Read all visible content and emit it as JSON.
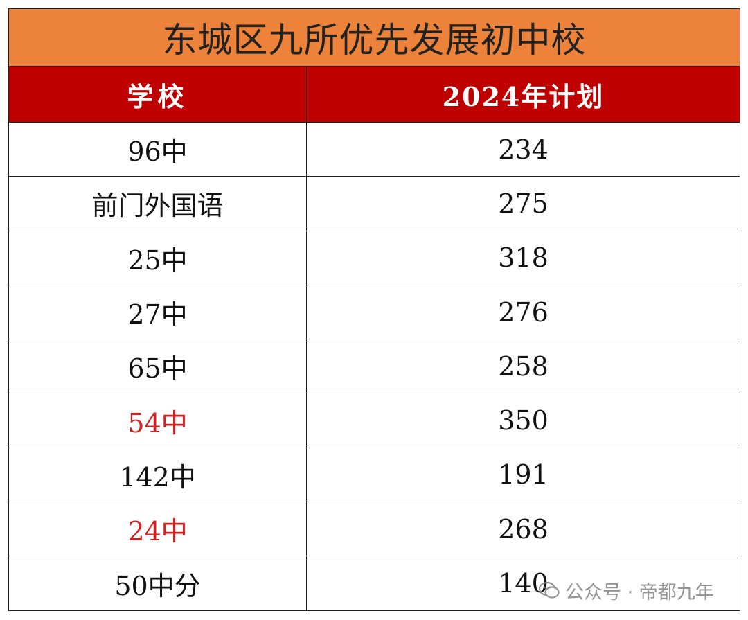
{
  "table": {
    "title": "东城区九所优先发展初中校",
    "headers": {
      "school": "学校",
      "plan": "2024年计划"
    },
    "rows": [
      {
        "school": "96中",
        "plan": "234",
        "highlight": false
      },
      {
        "school": "前门外国语",
        "plan": "275",
        "highlight": false
      },
      {
        "school": "25中",
        "plan": "318",
        "highlight": false
      },
      {
        "school": "27中",
        "plan": "276",
        "highlight": false
      },
      {
        "school": "65中",
        "plan": "258",
        "highlight": false
      },
      {
        "school": "54中",
        "plan": "350",
        "highlight": true
      },
      {
        "school": "142中",
        "plan": "191",
        "highlight": false
      },
      {
        "school": "24中",
        "plan": "268",
        "highlight": true
      },
      {
        "school": "50中分",
        "plan": "140",
        "highlight": false
      }
    ]
  },
  "colors": {
    "title_bg": "#ED833A",
    "header_bg": "#BE0000",
    "highlight_text": "#D42020"
  },
  "watermark": {
    "icon": "wechat-icon",
    "text": "公众号 · 帝都九年"
  }
}
